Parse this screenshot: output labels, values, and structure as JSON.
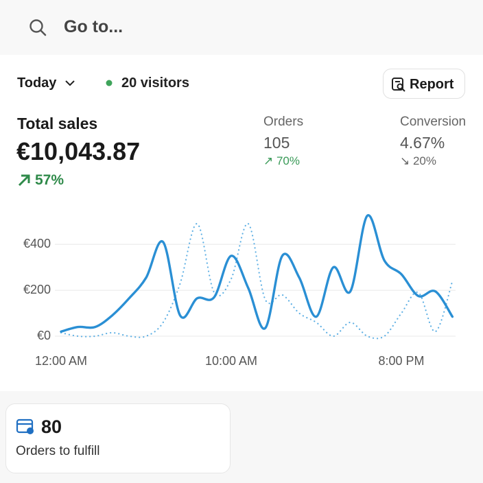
{
  "search": {
    "placeholder": "Go to..."
  },
  "toolbar": {
    "range": "Today",
    "visitors": "20 visitors",
    "report": "Report"
  },
  "metrics": {
    "total_sales": {
      "label": "Total sales",
      "value": "€10,043.87",
      "change": "57%"
    },
    "orders": {
      "label": "Orders",
      "value": "105",
      "change": "70%"
    },
    "conversion": {
      "label": "Conversion",
      "value": "4.67%",
      "change": "20%"
    }
  },
  "chart_data": {
    "type": "line",
    "categories": [
      "12:00 AM",
      null,
      null,
      null,
      null,
      null,
      null,
      null,
      null,
      null,
      "10:00 AM",
      null,
      null,
      null,
      null,
      null,
      null,
      null,
      null,
      null,
      "8:00 PM",
      null,
      null,
      null
    ],
    "series": [
      {
        "color": "#2a8fd4",
        "style": "solid",
        "values": [
          20,
          40,
          40,
          90,
          165,
          255,
          410,
          90,
          165,
          170,
          350,
          210,
          35,
          350,
          255,
          85,
          300,
          195,
          525,
          330,
          270,
          175,
          195,
          85
        ]
      },
      {
        "color": "#5fb0e4",
        "style": "dotted",
        "values": [
          15,
          0,
          0,
          15,
          0,
          0,
          60,
          230,
          490,
          190,
          250,
          490,
          160,
          180,
          100,
          60,
          0,
          60,
          0,
          0,
          100,
          190,
          20,
          240
        ]
      }
    ],
    "ylim": [
      0,
      550
    ],
    "yticks": [
      {
        "value": 0,
        "label": "€0"
      },
      {
        "value": 200,
        "label": "€200"
      },
      {
        "value": 400,
        "label": "€400"
      }
    ],
    "grid": true
  },
  "card": {
    "count": "80",
    "label": "Orders to fulfill"
  }
}
